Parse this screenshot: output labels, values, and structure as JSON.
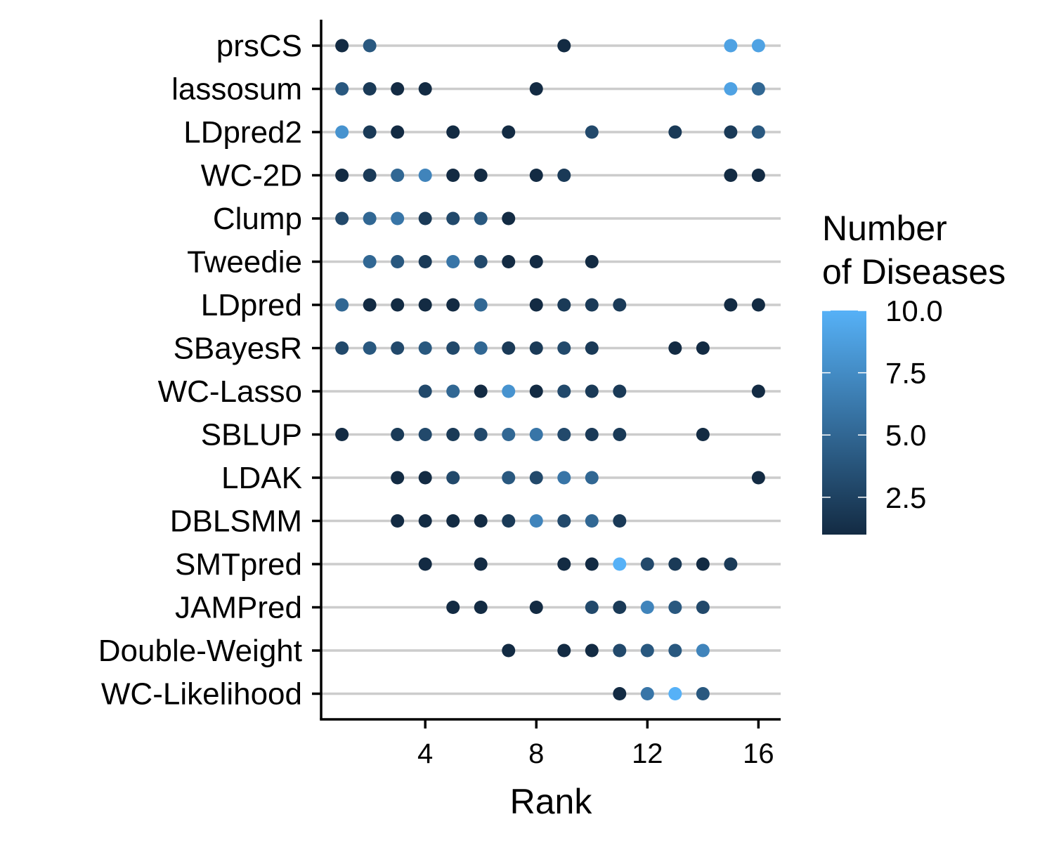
{
  "chart_data": {
    "type": "scatter",
    "title": "",
    "xlabel": "Rank",
    "ylabel": "",
    "xlim": [
      0.25,
      16.8
    ],
    "x_ticks": [
      4,
      8,
      12,
      16
    ],
    "grid": "horizontal",
    "categories": [
      "prsCS",
      "lassosum",
      "LDpred2",
      "WC-2D",
      "Clump",
      "Tweedie",
      "LDpred",
      "SBayesR",
      "WC-Lasso",
      "SBLUP",
      "LDAK",
      "DBLSMM",
      "SMTpred",
      "JAMPred",
      "Double-Weight",
      "WC-Likelihood"
    ],
    "points": [
      {
        "method": "prsCS",
        "rank": 1,
        "n": 1
      },
      {
        "method": "prsCS",
        "rank": 2,
        "n": 4
      },
      {
        "method": "prsCS",
        "rank": 9,
        "n": 1
      },
      {
        "method": "prsCS",
        "rank": 15,
        "n": 9
      },
      {
        "method": "prsCS",
        "rank": 16,
        "n": 9
      },
      {
        "method": "lassosum",
        "rank": 1,
        "n": 4
      },
      {
        "method": "lassosum",
        "rank": 2,
        "n": 2
      },
      {
        "method": "lassosum",
        "rank": 3,
        "n": 1
      },
      {
        "method": "lassosum",
        "rank": 4,
        "n": 1
      },
      {
        "method": "lassosum",
        "rank": 8,
        "n": 1
      },
      {
        "method": "lassosum",
        "rank": 15,
        "n": 9
      },
      {
        "method": "lassosum",
        "rank": 16,
        "n": 5
      },
      {
        "method": "LDpred2",
        "rank": 1,
        "n": 8
      },
      {
        "method": "LDpred2",
        "rank": 2,
        "n": 2
      },
      {
        "method": "LDpred2",
        "rank": 3,
        "n": 1
      },
      {
        "method": "LDpred2",
        "rank": 5,
        "n": 1
      },
      {
        "method": "LDpred2",
        "rank": 7,
        "n": 1
      },
      {
        "method": "LDpred2",
        "rank": 10,
        "n": 3
      },
      {
        "method": "LDpred2",
        "rank": 13,
        "n": 2
      },
      {
        "method": "LDpred2",
        "rank": 15,
        "n": 2
      },
      {
        "method": "LDpred2",
        "rank": 16,
        "n": 4
      },
      {
        "method": "WC-2D",
        "rank": 1,
        "n": 1
      },
      {
        "method": "WC-2D",
        "rank": 2,
        "n": 2
      },
      {
        "method": "WC-2D",
        "rank": 3,
        "n": 5
      },
      {
        "method": "WC-2D",
        "rank": 4,
        "n": 7
      },
      {
        "method": "WC-2D",
        "rank": 5,
        "n": 1
      },
      {
        "method": "WC-2D",
        "rank": 6,
        "n": 1
      },
      {
        "method": "WC-2D",
        "rank": 8,
        "n": 1
      },
      {
        "method": "WC-2D",
        "rank": 9,
        "n": 2
      },
      {
        "method": "WC-2D",
        "rank": 15,
        "n": 1
      },
      {
        "method": "WC-2D",
        "rank": 16,
        "n": 1
      },
      {
        "method": "Clump",
        "rank": 1,
        "n": 3
      },
      {
        "method": "Clump",
        "rank": 2,
        "n": 5
      },
      {
        "method": "Clump",
        "rank": 3,
        "n": 6
      },
      {
        "method": "Clump",
        "rank": 4,
        "n": 2
      },
      {
        "method": "Clump",
        "rank": 5,
        "n": 3
      },
      {
        "method": "Clump",
        "rank": 6,
        "n": 4
      },
      {
        "method": "Clump",
        "rank": 7,
        "n": 1
      },
      {
        "method": "Tweedie",
        "rank": 2,
        "n": 5
      },
      {
        "method": "Tweedie",
        "rank": 3,
        "n": 4
      },
      {
        "method": "Tweedie",
        "rank": 4,
        "n": 2
      },
      {
        "method": "Tweedie",
        "rank": 5,
        "n": 6
      },
      {
        "method": "Tweedie",
        "rank": 6,
        "n": 3
      },
      {
        "method": "Tweedie",
        "rank": 7,
        "n": 1
      },
      {
        "method": "Tweedie",
        "rank": 8,
        "n": 1
      },
      {
        "method": "Tweedie",
        "rank": 10,
        "n": 1
      },
      {
        "method": "LDpred",
        "rank": 1,
        "n": 5
      },
      {
        "method": "LDpred",
        "rank": 2,
        "n": 1
      },
      {
        "method": "LDpred",
        "rank": 3,
        "n": 1
      },
      {
        "method": "LDpred",
        "rank": 4,
        "n": 1
      },
      {
        "method": "LDpred",
        "rank": 5,
        "n": 1
      },
      {
        "method": "LDpred",
        "rank": 6,
        "n": 5
      },
      {
        "method": "LDpred",
        "rank": 8,
        "n": 1
      },
      {
        "method": "LDpred",
        "rank": 9,
        "n": 2
      },
      {
        "method": "LDpred",
        "rank": 10,
        "n": 2
      },
      {
        "method": "LDpred",
        "rank": 11,
        "n": 2
      },
      {
        "method": "LDpred",
        "rank": 15,
        "n": 1
      },
      {
        "method": "LDpred",
        "rank": 16,
        "n": 1
      },
      {
        "method": "SBayesR",
        "rank": 1,
        "n": 3
      },
      {
        "method": "SBayesR",
        "rank": 2,
        "n": 4
      },
      {
        "method": "SBayesR",
        "rank": 3,
        "n": 3
      },
      {
        "method": "SBayesR",
        "rank": 4,
        "n": 4
      },
      {
        "method": "SBayesR",
        "rank": 5,
        "n": 3
      },
      {
        "method": "SBayesR",
        "rank": 6,
        "n": 5
      },
      {
        "method": "SBayesR",
        "rank": 7,
        "n": 2
      },
      {
        "method": "SBayesR",
        "rank": 8,
        "n": 2
      },
      {
        "method": "SBayesR",
        "rank": 9,
        "n": 3
      },
      {
        "method": "SBayesR",
        "rank": 10,
        "n": 2
      },
      {
        "method": "SBayesR",
        "rank": 13,
        "n": 1
      },
      {
        "method": "SBayesR",
        "rank": 14,
        "n": 1
      },
      {
        "method": "WC-Lasso",
        "rank": 4,
        "n": 3
      },
      {
        "method": "WC-Lasso",
        "rank": 5,
        "n": 5
      },
      {
        "method": "WC-Lasso",
        "rank": 6,
        "n": 1
      },
      {
        "method": "WC-Lasso",
        "rank": 7,
        "n": 8
      },
      {
        "method": "WC-Lasso",
        "rank": 8,
        "n": 1
      },
      {
        "method": "WC-Lasso",
        "rank": 9,
        "n": 3
      },
      {
        "method": "WC-Lasso",
        "rank": 10,
        "n": 2
      },
      {
        "method": "WC-Lasso",
        "rank": 11,
        "n": 2
      },
      {
        "method": "WC-Lasso",
        "rank": 16,
        "n": 1
      },
      {
        "method": "SBLUP",
        "rank": 1,
        "n": 1
      },
      {
        "method": "SBLUP",
        "rank": 3,
        "n": 2
      },
      {
        "method": "SBLUP",
        "rank": 4,
        "n": 3
      },
      {
        "method": "SBLUP",
        "rank": 5,
        "n": 2
      },
      {
        "method": "SBLUP",
        "rank": 6,
        "n": 3
      },
      {
        "method": "SBLUP",
        "rank": 7,
        "n": 5
      },
      {
        "method": "SBLUP",
        "rank": 8,
        "n": 6
      },
      {
        "method": "SBLUP",
        "rank": 9,
        "n": 3
      },
      {
        "method": "SBLUP",
        "rank": 10,
        "n": 2
      },
      {
        "method": "SBLUP",
        "rank": 11,
        "n": 2
      },
      {
        "method": "SBLUP",
        "rank": 14,
        "n": 1
      },
      {
        "method": "LDAK",
        "rank": 3,
        "n": 1
      },
      {
        "method": "LDAK",
        "rank": 4,
        "n": 1
      },
      {
        "method": "LDAK",
        "rank": 5,
        "n": 3
      },
      {
        "method": "LDAK",
        "rank": 7,
        "n": 4
      },
      {
        "method": "LDAK",
        "rank": 8,
        "n": 3
      },
      {
        "method": "LDAK",
        "rank": 9,
        "n": 6
      },
      {
        "method": "LDAK",
        "rank": 10,
        "n": 5
      },
      {
        "method": "LDAK",
        "rank": 16,
        "n": 1
      },
      {
        "method": "DBLSMM",
        "rank": 3,
        "n": 1
      },
      {
        "method": "DBLSMM",
        "rank": 4,
        "n": 1
      },
      {
        "method": "DBLSMM",
        "rank": 5,
        "n": 1
      },
      {
        "method": "DBLSMM",
        "rank": 6,
        "n": 1
      },
      {
        "method": "DBLSMM",
        "rank": 7,
        "n": 2
      },
      {
        "method": "DBLSMM",
        "rank": 8,
        "n": 7
      },
      {
        "method": "DBLSMM",
        "rank": 9,
        "n": 3
      },
      {
        "method": "DBLSMM",
        "rank": 10,
        "n": 5
      },
      {
        "method": "DBLSMM",
        "rank": 11,
        "n": 2
      },
      {
        "method": "SMTpred",
        "rank": 4,
        "n": 1
      },
      {
        "method": "SMTpred",
        "rank": 6,
        "n": 1
      },
      {
        "method": "SMTpred",
        "rank": 9,
        "n": 1
      },
      {
        "method": "SMTpred",
        "rank": 10,
        "n": 1
      },
      {
        "method": "SMTpred",
        "rank": 11,
        "n": 10
      },
      {
        "method": "SMTpred",
        "rank": 12,
        "n": 3
      },
      {
        "method": "SMTpred",
        "rank": 13,
        "n": 2
      },
      {
        "method": "SMTpred",
        "rank": 14,
        "n": 1
      },
      {
        "method": "SMTpred",
        "rank": 15,
        "n": 2
      },
      {
        "method": "JAMPred",
        "rank": 5,
        "n": 1
      },
      {
        "method": "JAMPred",
        "rank": 6,
        "n": 1
      },
      {
        "method": "JAMPred",
        "rank": 8,
        "n": 1
      },
      {
        "method": "JAMPred",
        "rank": 10,
        "n": 3
      },
      {
        "method": "JAMPred",
        "rank": 11,
        "n": 2
      },
      {
        "method": "JAMPred",
        "rank": 12,
        "n": 7
      },
      {
        "method": "JAMPred",
        "rank": 13,
        "n": 4
      },
      {
        "method": "JAMPred",
        "rank": 14,
        "n": 3
      },
      {
        "method": "Double-Weight",
        "rank": 7,
        "n": 1
      },
      {
        "method": "Double-Weight",
        "rank": 9,
        "n": 1
      },
      {
        "method": "Double-Weight",
        "rank": 10,
        "n": 1
      },
      {
        "method": "Double-Weight",
        "rank": 11,
        "n": 3
      },
      {
        "method": "Double-Weight",
        "rank": 12,
        "n": 4
      },
      {
        "method": "Double-Weight",
        "rank": 13,
        "n": 4
      },
      {
        "method": "Double-Weight",
        "rank": 14,
        "n": 7
      },
      {
        "method": "WC-Likelihood",
        "rank": 11,
        "n": 1
      },
      {
        "method": "WC-Likelihood",
        "rank": 12,
        "n": 6
      },
      {
        "method": "WC-Likelihood",
        "rank": 13,
        "n": 10
      },
      {
        "method": "WC-Likelihood",
        "rank": 14,
        "n": 4
      }
    ],
    "legend": {
      "title_lines": [
        "Number",
        "of Diseases"
      ],
      "placement": "right",
      "range": [
        1,
        10
      ],
      "ticks": [
        2.5,
        5.0,
        7.5,
        10.0
      ],
      "tick_labels": [
        "2.5",
        "5.0",
        "7.5",
        "10.0"
      ],
      "color_low": "#132B43",
      "color_high": "#56B1F7"
    },
    "colors": {
      "grid": "#cccccc",
      "axis": "#000000"
    }
  }
}
